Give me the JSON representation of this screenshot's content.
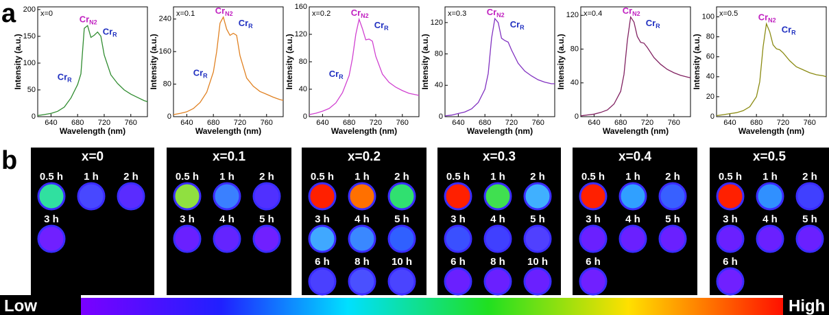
{
  "panel_labels": [
    "a",
    "b"
  ],
  "chart_data": [
    {
      "type": "line",
      "label": "x=0",
      "xlabel": "Wavelength (nm)",
      "ylabel": "Intensity (a.u.)",
      "x": [
        620,
        630,
        640,
        650,
        660,
        670,
        680,
        685,
        690,
        695,
        700,
        705,
        710,
        715,
        720,
        730,
        740,
        750,
        760,
        770,
        780,
        785
      ],
      "series": [
        {
          "color": "#2e8b2e",
          "values": [
            2,
            4,
            6,
            10,
            18,
            35,
            60,
            80,
            165,
            170,
            148,
            152,
            158,
            150,
            115,
            78,
            62,
            50,
            42,
            36,
            30,
            28
          ]
        }
      ],
      "xlim": [
        620,
        785
      ],
      "xticks": [
        640,
        680,
        720,
        760
      ],
      "ylim": [
        0,
        205
      ],
      "yticks": [
        0,
        50,
        100,
        150,
        200
      ],
      "peak_labels": [
        {
          "text": "Cr",
          "sub": "N2",
          "color": "#c020c0"
        },
        {
          "text": "Cr",
          "sub": "R",
          "color": "#2030c0"
        },
        {
          "text": "Cr",
          "sub": "R",
          "color": "#2030c0"
        }
      ]
    },
    {
      "type": "line",
      "label": "x=0.1",
      "xlabel": "Wavelength (nm)",
      "ylabel": "Intensity (a.u.)",
      "x": [
        620,
        630,
        640,
        650,
        660,
        670,
        680,
        685,
        690,
        695,
        700,
        705,
        710,
        715,
        720,
        730,
        740,
        750,
        760,
        770,
        780,
        785
      ],
      "series": [
        {
          "color": "#e08020",
          "values": [
            5,
            8,
            12,
            20,
            35,
            60,
            110,
            160,
            230,
            245,
            215,
            200,
            205,
            200,
            150,
            95,
            75,
            62,
            55,
            48,
            42,
            40
          ]
        }
      ],
      "xlim": [
        620,
        785
      ],
      "xticks": [
        640,
        680,
        720,
        760
      ],
      "ylim": [
        0,
        270
      ],
      "yticks": [
        0,
        80,
        160,
        240
      ],
      "peak_labels": [
        {
          "text": "Cr",
          "sub": "N2",
          "color": "#c020c0"
        },
        {
          "text": "Cr",
          "sub": "R",
          "color": "#2030c0"
        },
        {
          "text": "Cr",
          "sub": "R",
          "color": "#2030c0"
        }
      ]
    },
    {
      "type": "line",
      "label": "x=0.2",
      "xlabel": "Wavelength (nm)",
      "ylabel": "Intensity (a.u.)",
      "x": [
        620,
        630,
        640,
        650,
        660,
        670,
        680,
        685,
        690,
        695,
        700,
        705,
        710,
        715,
        720,
        730,
        740,
        750,
        760,
        770,
        780,
        785
      ],
      "series": [
        {
          "color": "#d040d0",
          "values": [
            3,
            5,
            8,
            12,
            20,
            35,
            60,
            85,
            120,
            142,
            128,
            112,
            113,
            110,
            88,
            62,
            50,
            43,
            38,
            34,
            32,
            31
          ]
        }
      ],
      "xlim": [
        620,
        785
      ],
      "xticks": [
        640,
        680,
        720,
        760
      ],
      "ylim": [
        0,
        160
      ],
      "yticks": [
        0,
        40,
        80,
        120,
        160
      ],
      "peak_labels": [
        {
          "text": "Cr",
          "sub": "N2",
          "color": "#c020c0"
        },
        {
          "text": "Cr",
          "sub": "R",
          "color": "#2030c0"
        },
        {
          "text": "Cr",
          "sub": "R",
          "color": "#2030c0"
        }
      ]
    },
    {
      "type": "line",
      "label": "x=0.3",
      "xlabel": "Wavelength (nm)",
      "ylabel": "Intensity (a.u.)",
      "x": [
        620,
        630,
        640,
        650,
        660,
        670,
        680,
        685,
        690,
        695,
        700,
        705,
        710,
        715,
        720,
        730,
        740,
        750,
        760,
        770,
        780,
        785
      ],
      "series": [
        {
          "color": "#8030c0",
          "values": [
            1,
            2,
            4,
            6,
            10,
            18,
            35,
            55,
            100,
            125,
            120,
            100,
            97,
            95,
            85,
            68,
            58,
            52,
            47,
            44,
            42,
            42
          ]
        }
      ],
      "xlim": [
        620,
        785
      ],
      "xticks": [
        640,
        680,
        720,
        760
      ],
      "ylim": [
        0,
        140
      ],
      "yticks": [
        0,
        40,
        80,
        120
      ],
      "peak_labels": [
        {
          "text": "Cr",
          "sub": "N2",
          "color": "#c020c0"
        },
        {
          "text": "Cr",
          "sub": "R",
          "color": "#2030c0"
        }
      ]
    },
    {
      "type": "line",
      "label": "x=0.4",
      "xlabel": "Wavelength (nm)",
      "ylabel": "Intensity (a.u.)",
      "x": [
        620,
        630,
        640,
        650,
        660,
        670,
        680,
        685,
        690,
        695,
        700,
        705,
        710,
        715,
        720,
        730,
        740,
        750,
        760,
        770,
        780,
        785
      ],
      "series": [
        {
          "color": "#802060",
          "values": [
            1,
            2,
            3,
            5,
            8,
            15,
            30,
            50,
            90,
            118,
            112,
            95,
            88,
            87,
            82,
            70,
            62,
            56,
            52,
            49,
            47,
            46
          ]
        }
      ],
      "xlim": [
        620,
        785
      ],
      "xticks": [
        640,
        680,
        720,
        760
      ],
      "ylim": [
        0,
        130
      ],
      "yticks": [
        0,
        40,
        80,
        120
      ],
      "peak_labels": [
        {
          "text": "Cr",
          "sub": "N2",
          "color": "#c020c0"
        },
        {
          "text": "Cr",
          "sub": "R",
          "color": "#2030c0"
        }
      ]
    },
    {
      "type": "line",
      "label": "x=0.5",
      "xlabel": "Wavelength (nm)",
      "ylabel": "Intensity (a.u.)",
      "x": [
        620,
        630,
        640,
        650,
        660,
        670,
        680,
        685,
        690,
        695,
        700,
        705,
        710,
        715,
        720,
        730,
        740,
        750,
        760,
        770,
        780,
        785
      ],
      "series": [
        {
          "color": "#8a8a10",
          "values": [
            1,
            2,
            3,
            4,
            6,
            10,
            20,
            35,
            70,
            93,
            85,
            72,
            68,
            67,
            64,
            56,
            50,
            47,
            44,
            42,
            41,
            40
          ]
        }
      ],
      "xlim": [
        620,
        785
      ],
      "xticks": [
        640,
        680,
        720,
        760
      ],
      "ylim": [
        0,
        110
      ],
      "yticks": [
        0,
        20,
        40,
        60,
        80,
        100
      ],
      "peak_labels": [
        {
          "text": "Cr",
          "sub": "N2",
          "color": "#c020c0"
        },
        {
          "text": "Cr",
          "sub": "R",
          "color": "#2030c0"
        }
      ]
    }
  ],
  "images": [
    {
      "title": "x=0",
      "spots": [
        {
          "label": "0.5 h",
          "color": "#30e0a0"
        },
        {
          "label": "1 h",
          "color": "#4848ff"
        },
        {
          "label": "2 h",
          "color": "#5a2cff"
        },
        {
          "label": "3 h",
          "color": "#7020ff"
        }
      ]
    },
    {
      "title": "x=0.1",
      "spots": [
        {
          "label": "0.5 h",
          "color": "#90e040"
        },
        {
          "label": "1 h",
          "color": "#3a80ff"
        },
        {
          "label": "2 h",
          "color": "#5030ff"
        },
        {
          "label": "3 h",
          "color": "#6a20ff"
        },
        {
          "label": "4 h",
          "color": "#6424ff"
        },
        {
          "label": "5 h",
          "color": "#7020ff"
        }
      ]
    },
    {
      "title": "x=0.2",
      "spots": [
        {
          "label": "0.5 h",
          "color": "#ff2000"
        },
        {
          "label": "1 h",
          "color": "#ff7000"
        },
        {
          "label": "2 h",
          "color": "#30e070"
        },
        {
          "label": "3 h",
          "color": "#40a8ff"
        },
        {
          "label": "4 h",
          "color": "#3a88ff"
        },
        {
          "label": "5 h",
          "color": "#3060ff"
        },
        {
          "label": "6 h",
          "color": "#4a40ff"
        },
        {
          "label": "8 h",
          "color": "#4a50ff"
        },
        {
          "label": "10 h",
          "color": "#4a44ff"
        }
      ]
    },
    {
      "title": "x=0.3",
      "spots": [
        {
          "label": "0.5 h",
          "color": "#ff2000"
        },
        {
          "label": "1 h",
          "color": "#40e050"
        },
        {
          "label": "2 h",
          "color": "#40b0ff"
        },
        {
          "label": "3 h",
          "color": "#3a50ff"
        },
        {
          "label": "4 h",
          "color": "#4040ff"
        },
        {
          "label": "5 h",
          "color": "#5040ff"
        },
        {
          "label": "6 h",
          "color": "#6a20ff"
        },
        {
          "label": "8 h",
          "color": "#6a20ff"
        },
        {
          "label": "10 h",
          "color": "#6a20ff"
        }
      ]
    },
    {
      "title": "x=0.4",
      "spots": [
        {
          "label": "0.5 h",
          "color": "#ff2000"
        },
        {
          "label": "1 h",
          "color": "#30a0ff"
        },
        {
          "label": "2 h",
          "color": "#3860ff"
        },
        {
          "label": "3 h",
          "color": "#6a20ff"
        },
        {
          "label": "4 h",
          "color": "#6a20ff"
        },
        {
          "label": "5 h",
          "color": "#6a20ff"
        },
        {
          "label": "6 h",
          "color": "#7020ff"
        }
      ]
    },
    {
      "title": "x=0.5",
      "spots": [
        {
          "label": "0.5 h",
          "color": "#ff2000"
        },
        {
          "label": "1 h",
          "color": "#3090ff"
        },
        {
          "label": "2 h",
          "color": "#4040ff"
        },
        {
          "label": "3 h",
          "color": "#6a20ff"
        },
        {
          "label": "4 h",
          "color": "#6a20ff"
        },
        {
          "label": "5 h",
          "color": "#6a20ff"
        },
        {
          "label": "6 h",
          "color": "#7020ff"
        }
      ]
    }
  ],
  "colorbar": {
    "low": "Low",
    "high": "High"
  }
}
